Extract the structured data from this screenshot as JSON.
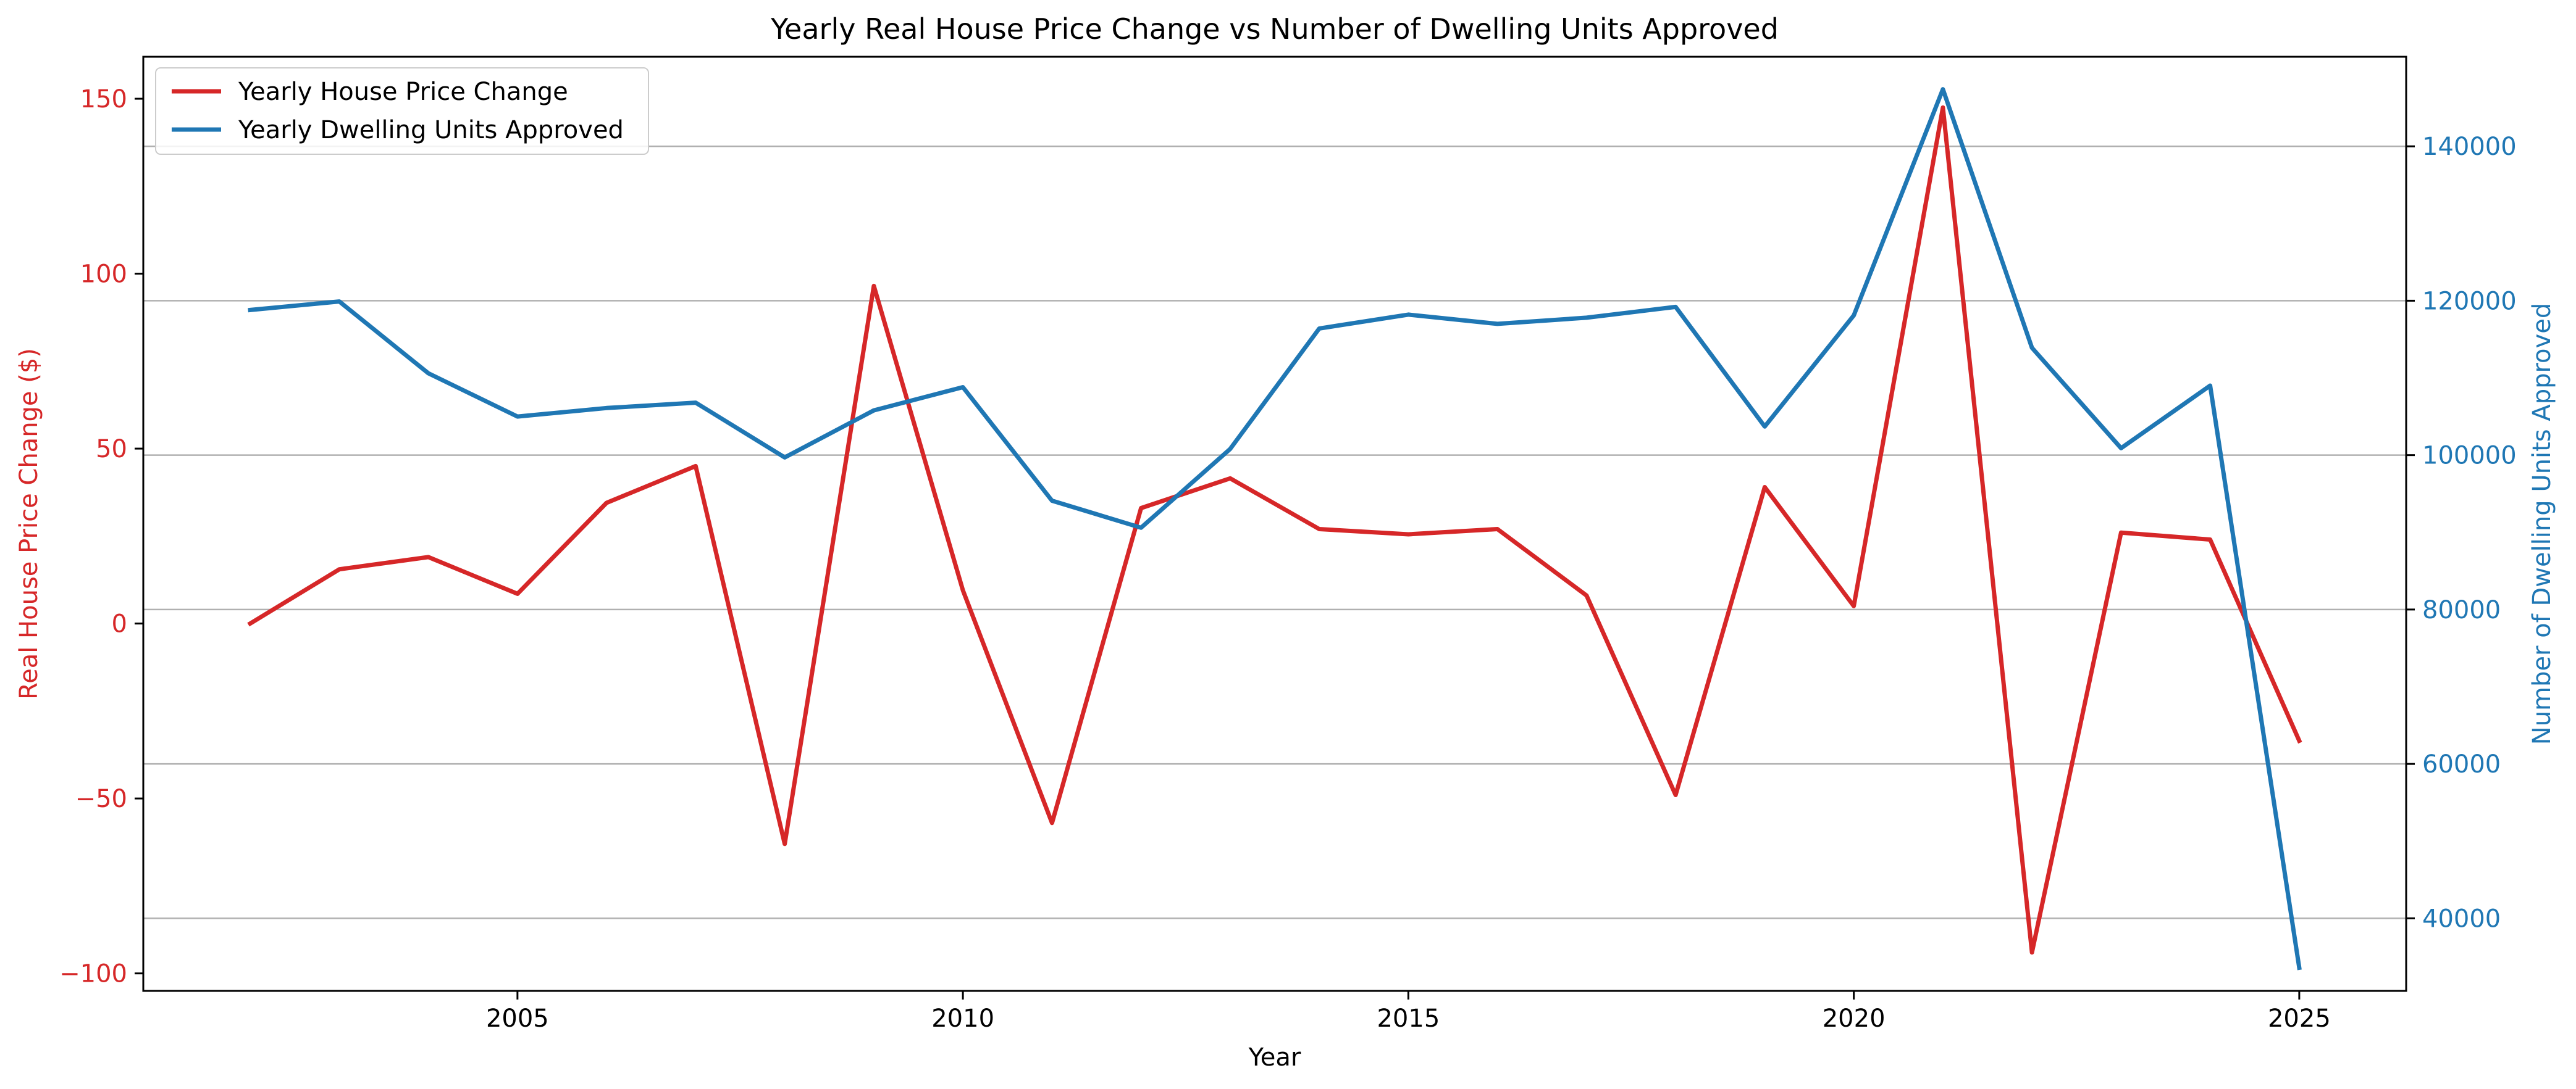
{
  "chart_data": {
    "type": "line",
    "title": "Yearly Real House Price Change vs Number of Dwelling Units Approved",
    "xlabel": "Year",
    "ylabel_left": "Real House Price Change ($)",
    "ylabel_right": "Number of Dwelling Units Approved",
    "x": [
      2002,
      2003,
      2004,
      2005,
      2006,
      2007,
      2008,
      2009,
      2010,
      2011,
      2012,
      2013,
      2014,
      2015,
      2016,
      2017,
      2018,
      2019,
      2020,
      2021,
      2022,
      2023,
      2024,
      2025
    ],
    "xlim": [
      2000.8,
      2026.2
    ],
    "ylim_left": [
      -105,
      162
    ],
    "ylim_right": [
      30600,
      151600
    ],
    "x_ticks": [
      2005,
      2010,
      2015,
      2020,
      2025
    ],
    "y_left_ticks": [
      -100,
      -50,
      0,
      50,
      100,
      150
    ],
    "y_right_ticks": [
      40000,
      60000,
      80000,
      100000,
      120000,
      140000
    ],
    "grid": "horizontal, right axis",
    "legend_position": "top-left",
    "series": [
      {
        "name": "Yearly House Price Change",
        "axis": "left",
        "color": "#d62728",
        "values": [
          0,
          15.5,
          19,
          8.5,
          34.5,
          45,
          -63,
          96.5,
          9.5,
          -57,
          33,
          41.5,
          27,
          25.5,
          27,
          8,
          -49,
          39,
          5,
          147.5,
          -94,
          26,
          24,
          -33.5
        ]
      },
      {
        "name": "Yearly Dwelling Units Approved",
        "axis": "right",
        "color": "#1f77b4",
        "values": [
          118800,
          119900,
          110600,
          105000,
          106100,
          106800,
          99700,
          105800,
          108800,
          94100,
          90600,
          100800,
          116400,
          118200,
          117000,
          117800,
          119200,
          103700,
          118100,
          147400,
          113900,
          100900,
          109000,
          33600
        ]
      }
    ]
  }
}
